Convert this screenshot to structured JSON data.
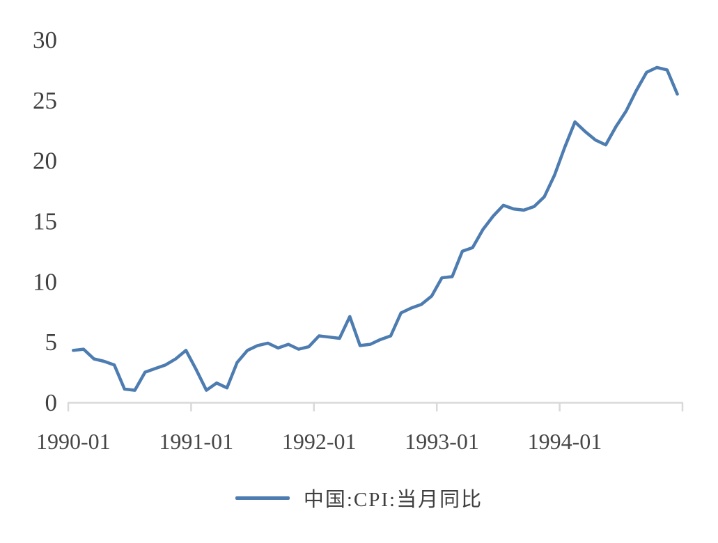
{
  "chart_data": {
    "type": "line",
    "title": "",
    "xlabel": "",
    "ylabel": "",
    "ylim": [
      0,
      30
    ],
    "yticks": [
      0,
      5,
      10,
      15,
      20,
      25,
      30
    ],
    "xticks": [
      "1990-01",
      "1991-01",
      "1992-01",
      "1993-01",
      "1994-01"
    ],
    "grid": false,
    "legend_position": "bottom-center",
    "axis_color": "#d9d9d9",
    "text_color": "#404040",
    "x": [
      "1990-01",
      "1990-02",
      "1990-03",
      "1990-04",
      "1990-05",
      "1990-06",
      "1990-07",
      "1990-08",
      "1990-09",
      "1990-10",
      "1990-11",
      "1990-12",
      "1991-01",
      "1991-02",
      "1991-03",
      "1991-04",
      "1991-05",
      "1991-06",
      "1991-07",
      "1991-08",
      "1991-09",
      "1991-10",
      "1991-11",
      "1991-12",
      "1992-01",
      "1992-02",
      "1992-03",
      "1992-04",
      "1992-05",
      "1992-06",
      "1992-07",
      "1992-08",
      "1992-09",
      "1992-10",
      "1992-11",
      "1992-12",
      "1993-01",
      "1993-02",
      "1993-03",
      "1993-04",
      "1993-05",
      "1993-06",
      "1993-07",
      "1993-08",
      "1993-09",
      "1993-10",
      "1993-11",
      "1993-12",
      "1994-01",
      "1994-02",
      "1994-03",
      "1994-04",
      "1994-05",
      "1994-06",
      "1994-07",
      "1994-08",
      "1994-09",
      "1994-10",
      "1994-11",
      "1994-12"
    ],
    "series": [
      {
        "name": "中国:CPI:当月同比",
        "color": "#4d7cb0",
        "values": [
          4.3,
          4.4,
          3.6,
          3.4,
          3.1,
          1.1,
          1.0,
          2.5,
          2.8,
          3.1,
          3.6,
          4.3,
          2.7,
          1.0,
          1.6,
          1.2,
          3.3,
          4.3,
          4.7,
          4.9,
          4.5,
          4.8,
          4.4,
          4.6,
          5.5,
          5.4,
          5.3,
          7.1,
          4.7,
          4.8,
          5.2,
          5.5,
          7.4,
          7.8,
          8.1,
          8.8,
          10.3,
          10.4,
          12.5,
          12.8,
          14.3,
          15.4,
          16.3,
          16.0,
          15.9,
          16.2,
          17.0,
          18.8,
          21.1,
          23.2,
          22.4,
          21.7,
          21.3,
          22.8,
          24.1,
          25.8,
          27.3,
          27.7,
          27.5,
          25.5
        ]
      }
    ]
  }
}
